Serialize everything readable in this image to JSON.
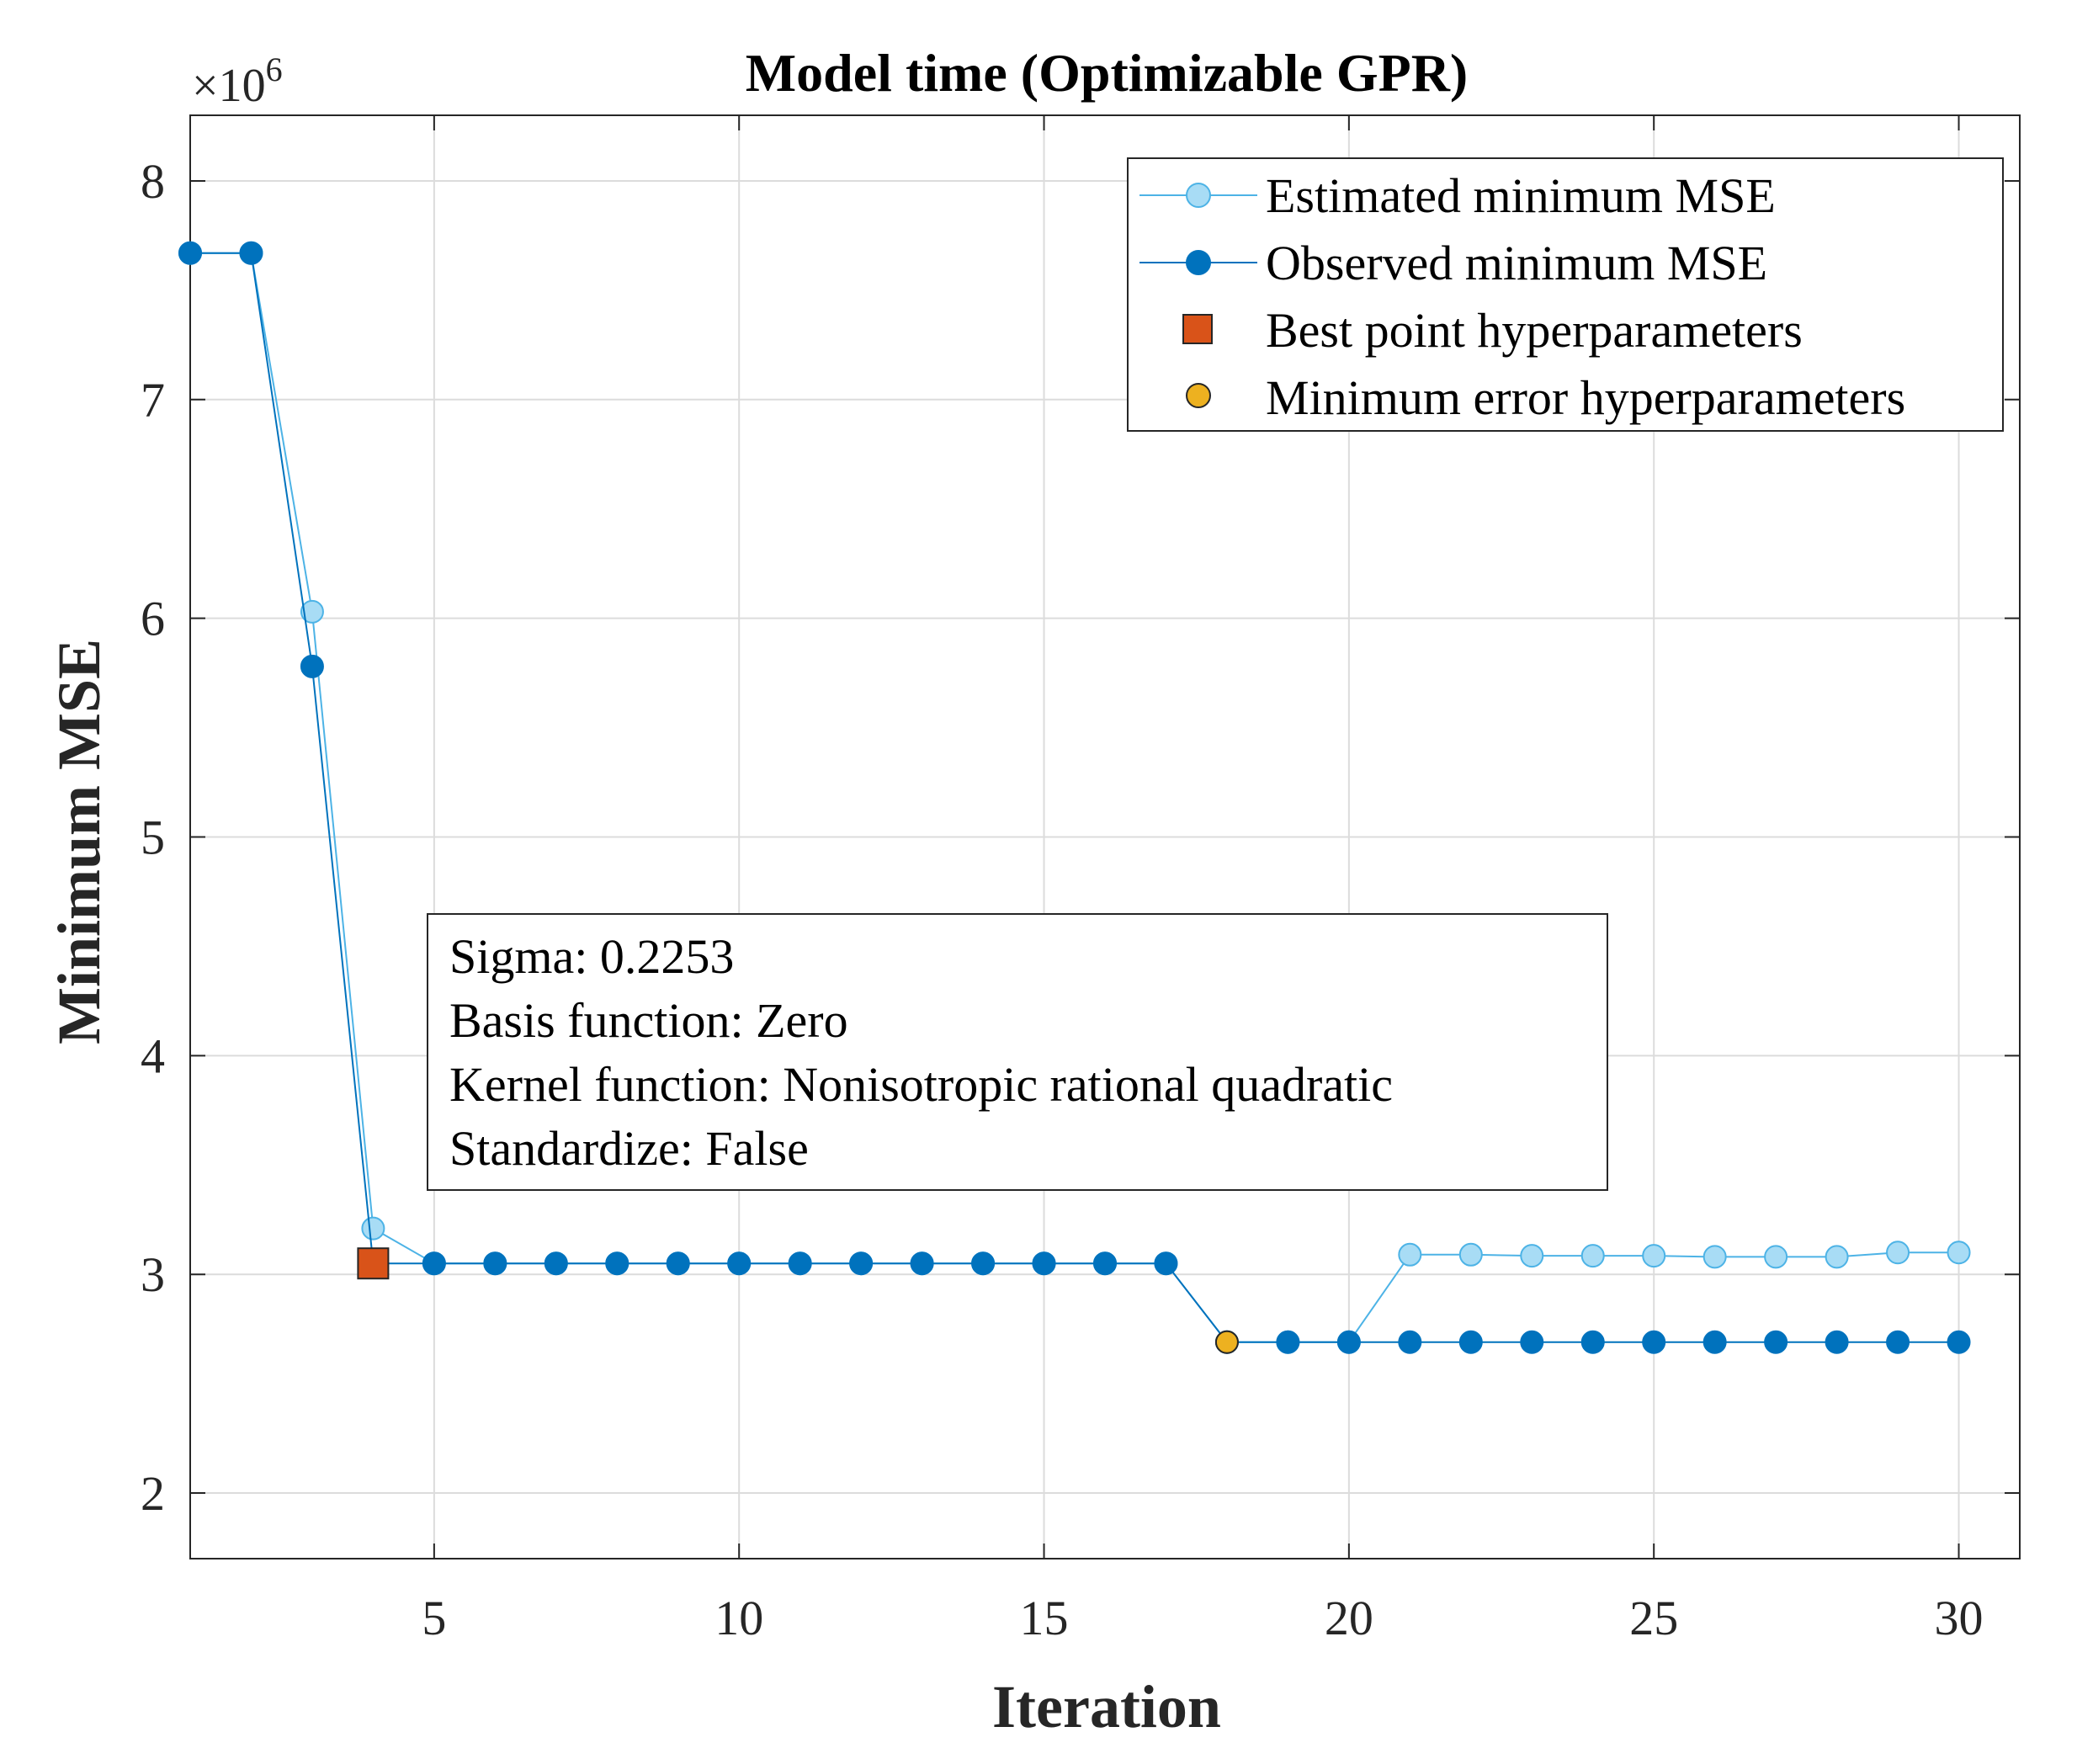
{
  "chart_data": {
    "type": "line",
    "title": "Model time (Optimizable GPR)",
    "xlabel": "Iteration",
    "ylabel": "Minimum MSE",
    "y_exponent_label": "×10",
    "y_exponent_power": "6",
    "xlim": [
      1,
      31
    ],
    "ylim": [
      1.7,
      8.3
    ],
    "xticks": [
      5,
      10,
      15,
      20,
      25,
      30
    ],
    "yticks": [
      2,
      3,
      4,
      5,
      6,
      7,
      8
    ],
    "grid": true,
    "legend_position": "top-right",
    "x": [
      1,
      2,
      3,
      4,
      5,
      6,
      7,
      8,
      9,
      10,
      11,
      12,
      13,
      14,
      15,
      16,
      17,
      18,
      19,
      20,
      21,
      22,
      23,
      24,
      25,
      26,
      27,
      28,
      29,
      30
    ],
    "series": [
      {
        "name": "Estimated minimum MSE",
        "color": "#a8dcf5",
        "edge": "#4db3e6",
        "values": [
          7.67,
          7.67,
          6.03,
          3.21,
          3.05,
          3.05,
          3.05,
          3.05,
          3.05,
          3.05,
          3.05,
          3.05,
          3.05,
          3.05,
          3.05,
          3.05,
          3.05,
          2.69,
          2.69,
          2.69,
          3.09,
          3.09,
          3.085,
          3.085,
          3.085,
          3.08,
          3.08,
          3.08,
          3.1,
          3.1
        ]
      },
      {
        "name": "Observed minimum MSE",
        "color": "#0072bd",
        "edge": "#0072bd",
        "values": [
          7.67,
          7.67,
          5.78,
          3.05,
          3.05,
          3.05,
          3.05,
          3.05,
          3.05,
          3.05,
          3.05,
          3.05,
          3.05,
          3.05,
          3.05,
          3.05,
          3.05,
          2.69,
          2.69,
          2.69,
          2.69,
          2.69,
          2.69,
          2.69,
          2.69,
          2.69,
          2.69,
          2.69,
          2.69,
          2.69
        ]
      }
    ],
    "markers": [
      {
        "name": "Best point hyperparameters",
        "shape": "square",
        "color": "#d95319",
        "x": 4,
        "y": 3.05
      },
      {
        "name": "Minimum error hyperparameters",
        "shape": "circle",
        "color": "#edb120",
        "x": 18,
        "y": 2.69
      }
    ],
    "annotation": [
      "Sigma: 0.2253",
      "Basis function: Zero",
      "Kernel function: Nonisotropic rational quadratic",
      "Standardize: False"
    ]
  }
}
